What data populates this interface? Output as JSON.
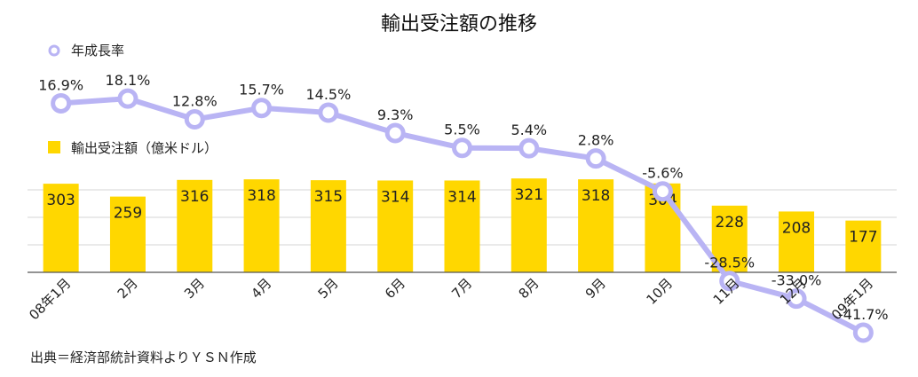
{
  "chart_data": {
    "type": "bar",
    "title": "輸出受注額の推移",
    "categories": [
      "08年1月",
      "2月",
      "3月",
      "4月",
      "5月",
      "6月",
      "7月",
      "8月",
      "9月",
      "10月",
      "11月",
      "12月",
      "09年1月"
    ],
    "series": [
      {
        "name": "輸出受注額（億米ドル）",
        "type": "bar",
        "color": "#FFD700",
        "values": [
          303,
          259,
          316,
          318,
          315,
          314,
          314,
          321,
          318,
          304,
          228,
          208,
          177
        ]
      },
      {
        "name": "年成長率",
        "type": "line",
        "color": "#B9B4F4",
        "values": [
          16.9,
          18.1,
          12.8,
          15.7,
          14.5,
          9.3,
          5.5,
          5.4,
          2.8,
          -5.6,
          -28.5,
          -33.0,
          -41.7
        ],
        "labels": [
          "16.9%",
          "18.1%",
          "12.8%",
          "15.7%",
          "14.5%",
          "9.3%",
          "5.5%",
          "5.4%",
          "2.8%",
          "-5.6%",
          "-28.5%",
          "-33.0%",
          "-41.7%"
        ]
      }
    ],
    "legend": [
      "年成長率",
      "輸出受注額（億米ドル）"
    ],
    "grid": true,
    "source": "出典＝経済部統計資料よりＹＳＮ作成"
  }
}
